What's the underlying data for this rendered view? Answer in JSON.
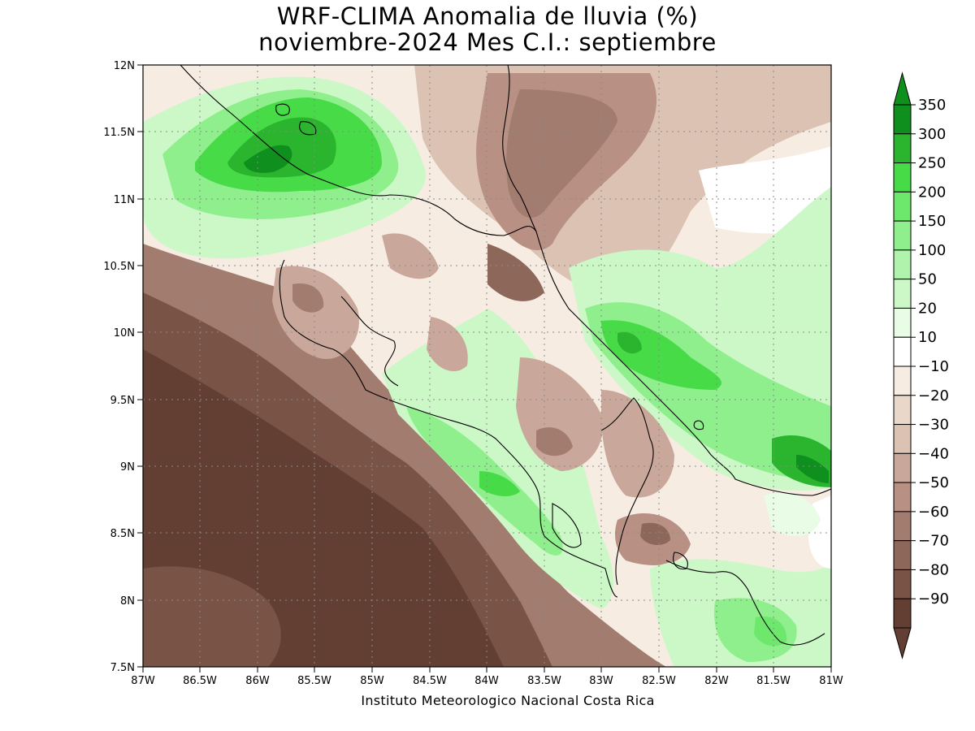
{
  "title": {
    "line1": "WRF-CLIMA Anomalia de lluvia (%)",
    "line2": "noviembre-2024 Mes C.I.: septiembre"
  },
  "axes": {
    "x_ticks": [
      "87W",
      "86.5W",
      "86W",
      "85.5W",
      "85W",
      "84.5W",
      "84W",
      "83.5W",
      "83W",
      "82.5W",
      "82W",
      "81.5W",
      "81W"
    ],
    "y_ticks": [
      "12N",
      "11.5N",
      "11N",
      "10.5N",
      "10N",
      "9.5N",
      "9N",
      "8.5N",
      "8N",
      "7.5N"
    ]
  },
  "legend": {
    "labels": [
      "350",
      "300",
      "250",
      "200",
      "150",
      "100",
      "50",
      "20",
      "10",
      "-10",
      "-20",
      "-30",
      "-40",
      "-50",
      "-60",
      "-70",
      "-80",
      "-90"
    ],
    "colors": [
      "#0f8f1e",
      "#2bb52e",
      "#46db47",
      "#6ee86c",
      "#8fef8c",
      "#b0f3ac",
      "#ccf8c8",
      "#e9fce6",
      "#ffffff",
      "#f6ece2",
      "#e9d7ca",
      "#dcc2b3",
      "#c9a89b",
      "#b89184",
      "#a37c70",
      "#8e675b",
      "#7a5347",
      "#633f33"
    ]
  },
  "credit": "Instituto Meteorologico Nacional Costa Rica"
}
